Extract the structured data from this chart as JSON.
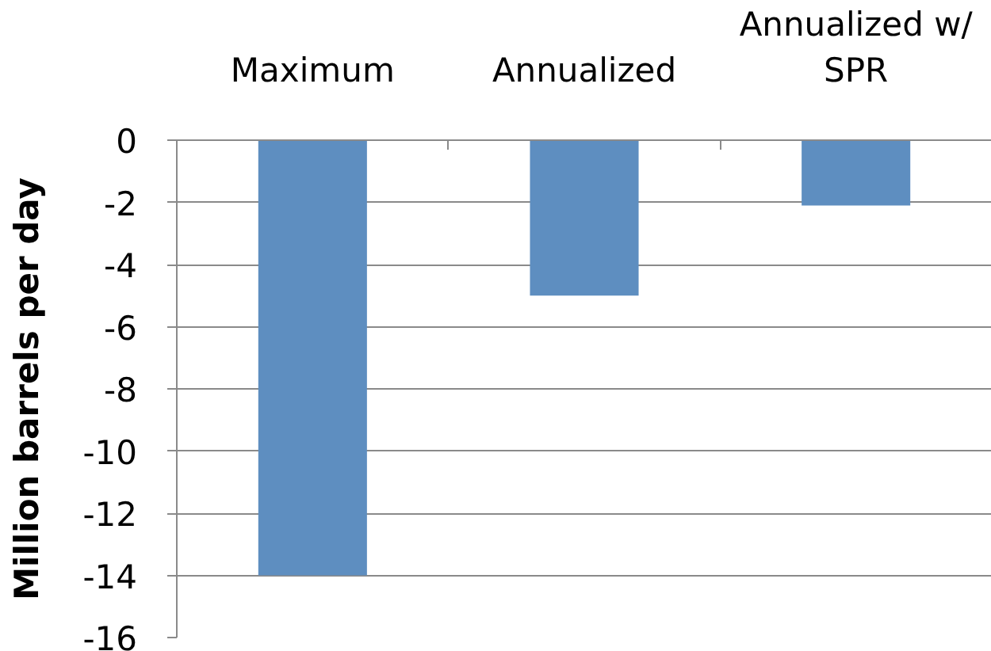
{
  "chart_data": {
    "type": "bar",
    "categories": [
      "Maximum",
      "Annualized",
      "Annualized w/ SPR"
    ],
    "values": [
      -14,
      -5,
      -2.1
    ],
    "color": "#5e8ec0",
    "ylabel": "Million barrels per day",
    "ylim": [
      -16,
      0
    ],
    "yticks": [
      -16,
      -14,
      -12,
      -10,
      -8,
      -6,
      -4,
      -2,
      0
    ],
    "grid": "y"
  }
}
